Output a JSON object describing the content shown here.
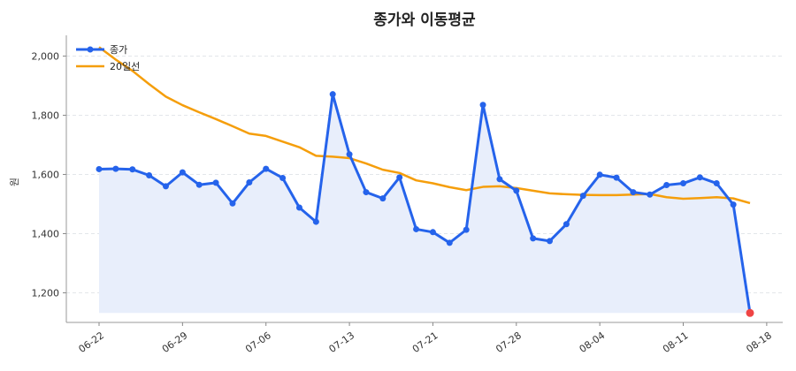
{
  "chart_data": {
    "type": "line",
    "title": "종가와 이동평균",
    "xlabel": "",
    "ylabel": "원",
    "ylim": [
      1100,
      2070
    ],
    "yticks": [
      1200,
      1400,
      1600,
      1800,
      2000
    ],
    "ytick_labels": [
      "1,200",
      "1,400",
      "1,600",
      "1,800",
      "2,000"
    ],
    "xtick_labels": [
      "06-22",
      "06-29",
      "07-06",
      "07-13",
      "07-21",
      "07-28",
      "08-04",
      "08-11",
      "08-18"
    ],
    "xtick_index": [
      0,
      5,
      10,
      15,
      20,
      25,
      30,
      35,
      40
    ],
    "legend_position": "top-left",
    "grid": true,
    "colors": {
      "close": "#2563eb",
      "ma20": "#f59e0b",
      "fill": "#e8eefb",
      "last_point": "#ef4444"
    },
    "series": [
      {
        "name": "종가",
        "values": [
          1618,
          1619,
          1617,
          1597,
          1560,
          1607,
          1565,
          1572,
          1502,
          1573,
          1619,
          1588,
          1488,
          1440,
          1871,
          1668,
          1540,
          1519,
          1590,
          1415,
          1405,
          1369,
          1413,
          1835,
          1584,
          1545,
          1384,
          1375,
          1432,
          1528,
          1599,
          1589,
          1540,
          1532,
          1564,
          1570,
          1590,
          1570,
          1498,
          1132
        ]
      },
      {
        "name": "20일선",
        "values": [
          2030,
          1988,
          1950,
          1905,
          1863,
          1834,
          1810,
          1787,
          1763,
          1738,
          1730,
          1711,
          1692,
          1663,
          1660,
          1655,
          1637,
          1616,
          1605,
          1580,
          1570,
          1557,
          1547,
          1558,
          1560,
          1554,
          1545,
          1536,
          1533,
          1531,
          1530,
          1530,
          1532,
          1534,
          1523,
          1518,
          1520,
          1523,
          1519,
          1503
        ]
      }
    ]
  }
}
